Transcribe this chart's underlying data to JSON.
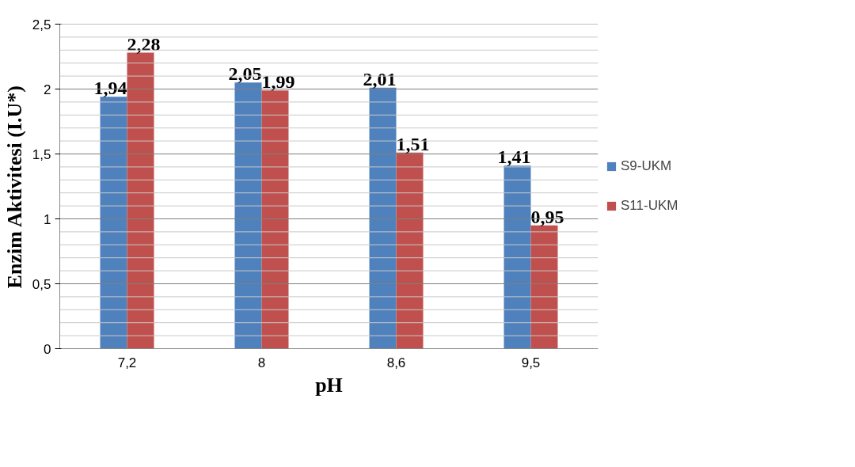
{
  "chart_data": {
    "type": "bar",
    "xlabel": "pH",
    "ylabel": "Enzim Aktivitesi (I.U*)",
    "categories": [
      "7,2",
      "8",
      "8,6",
      "9,5"
    ],
    "series": [
      {
        "name": "S9-UKM",
        "color": "#4f81bd",
        "values": [
          1.94,
          2.05,
          2.01,
          1.41
        ],
        "value_labels": [
          "1,94",
          "2,05",
          "2,01",
          "1,41"
        ]
      },
      {
        "name": "S11-UKM",
        "color": "#c0504d",
        "values": [
          2.28,
          1.99,
          1.51,
          0.95
        ],
        "value_labels": [
          "2,28",
          "1,99",
          "1,51",
          "0,95"
        ]
      }
    ],
    "ylim": [
      0,
      2.5
    ],
    "yticks": [
      {
        "value": 0,
        "label": "0"
      },
      {
        "value": 0.1,
        "label": null
      },
      {
        "value": 0.2,
        "label": null
      },
      {
        "value": 0.3,
        "label": null
      },
      {
        "value": 0.4,
        "label": null
      },
      {
        "value": 0.5,
        "label": "0,5"
      },
      {
        "value": 0.6,
        "label": null
      },
      {
        "value": 0.7,
        "label": null
      },
      {
        "value": 0.8,
        "label": null
      },
      {
        "value": 0.9,
        "label": null
      },
      {
        "value": 1,
        "label": "1"
      },
      {
        "value": 1.1,
        "label": null
      },
      {
        "value": 1.2,
        "label": null
      },
      {
        "value": 1.3,
        "label": null
      },
      {
        "value": 1.4,
        "label": null
      },
      {
        "value": 1.5,
        "label": "1,5"
      },
      {
        "value": 1.6,
        "label": null
      },
      {
        "value": 1.7,
        "label": null
      },
      {
        "value": 1.8,
        "label": null
      },
      {
        "value": 1.9,
        "label": null
      },
      {
        "value": 2,
        "label": "2"
      },
      {
        "value": 2.1,
        "label": null
      },
      {
        "value": 2.2,
        "label": null
      },
      {
        "value": 2.3,
        "label": null
      },
      {
        "value": 2.4,
        "label": null
      },
      {
        "value": 2.5,
        "label": "2,5"
      }
    ],
    "grid": "y",
    "legend": "right"
  }
}
